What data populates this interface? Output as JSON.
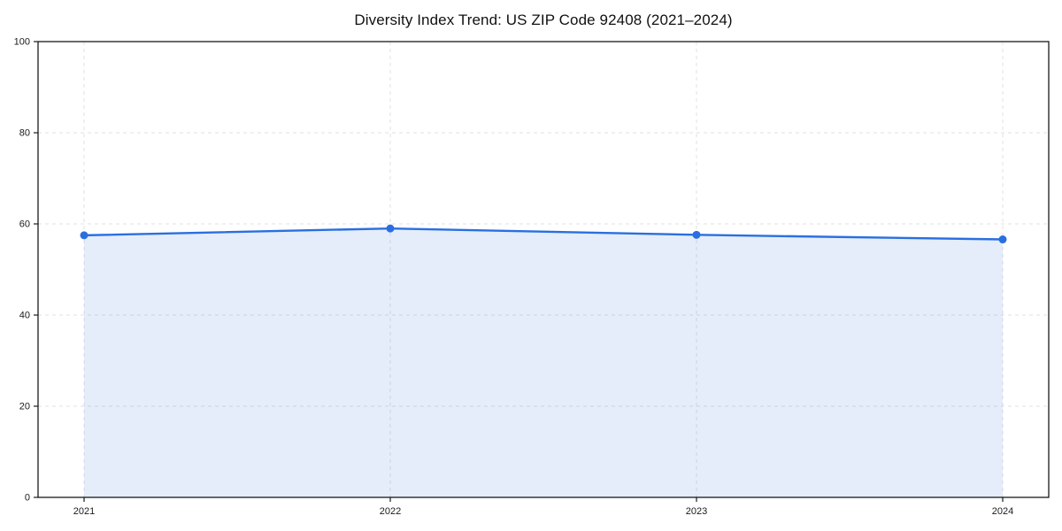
{
  "figure": {
    "background": "#ffffff"
  },
  "chart_data": {
    "type": "line",
    "title": "Diversity Index Trend: US ZIP Code 92408 (2021–2024)",
    "categories": [
      "2021",
      "2022",
      "2023",
      "2024"
    ],
    "series": [
      {
        "name": "Diversity Index",
        "values": [
          57.5,
          59.0,
          57.6,
          56.6
        ]
      }
    ],
    "xlabel": "",
    "ylabel": "",
    "ylim": [
      0,
      100
    ],
    "yticks": [
      0,
      20,
      40,
      60,
      80,
      100
    ],
    "grid": true,
    "grid_style": "dashed",
    "legend_position": "none",
    "line_color": "#2a6fe0",
    "marker": "circle",
    "marker_color": "#2a6fe0",
    "area_fill": true,
    "fill_color": "rgba(42, 111, 224, 0.12)",
    "spine_color": "#1a1a1a",
    "gridline_color": "#e1e1e1",
    "tick_label_color": "#1a1a1a"
  }
}
